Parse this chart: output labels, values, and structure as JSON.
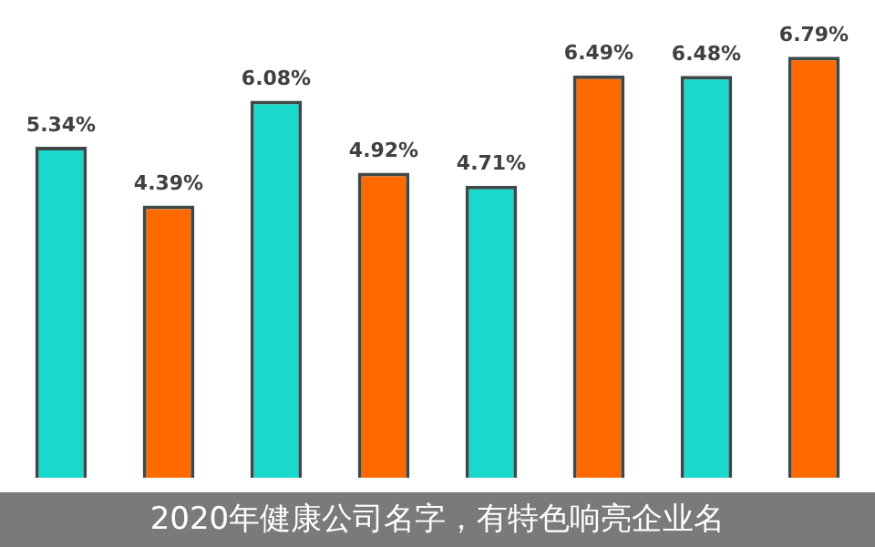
{
  "chart_data": {
    "type": "bar",
    "title": "2020年健康公司名字，有特色响亮企业名",
    "categories": [
      null,
      null,
      null,
      null,
      null,
      null,
      null,
      null
    ],
    "values": [
      5.34,
      4.39,
      6.08,
      4.92,
      4.71,
      6.49,
      6.48,
      6.79
    ],
    "colors": [
      "#19d9cc",
      "#ff6a00",
      "#19d9cc",
      "#ff6a00",
      "#19d9cc",
      "#ff6a00",
      "#19d9cc",
      "#ff6a00"
    ],
    "value_labels": [
      "5.34%",
      "4.39%",
      "6.08%",
      "4.92%",
      "4.71%",
      "6.49%",
      "6.48%",
      "6.79%"
    ]
  }
}
